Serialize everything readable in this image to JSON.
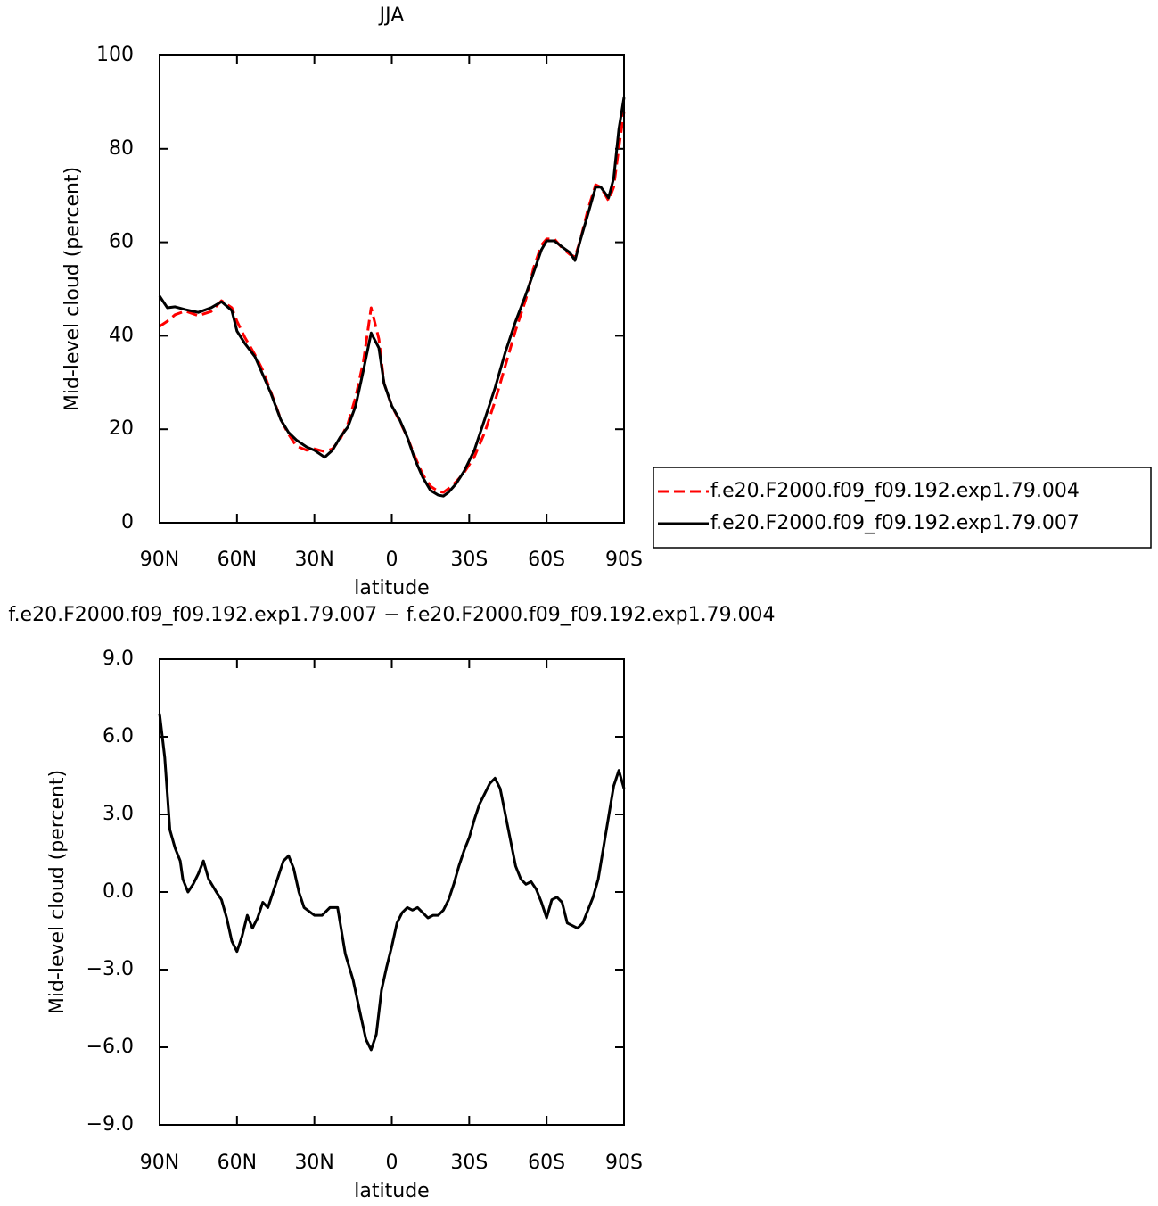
{
  "chart_data": [
    {
      "type": "line",
      "title": "JJA",
      "x_label": "latitude",
      "y_label": "Mid-level cloud (percent)",
      "xlim": [
        90,
        -90
      ],
      "ylim": [
        0,
        100
      ],
      "xticks": [
        {
          "value": 90,
          "label": "90N"
        },
        {
          "value": 60,
          "label": "60N"
        },
        {
          "value": 30,
          "label": "30N"
        },
        0,
        {
          "value": -30,
          "label": "30S"
        },
        {
          "value": -60,
          "label": "60S"
        },
        {
          "value": -90,
          "label": "90S"
        }
      ],
      "yticks": [
        0,
        20,
        40,
        60,
        80,
        100
      ],
      "legend": "right",
      "x": [
        90,
        87,
        84,
        80,
        75,
        70,
        66,
        62,
        60,
        57,
        53,
        50,
        47,
        43,
        40,
        37,
        33,
        30,
        26,
        23,
        20,
        17,
        14,
        11,
        8,
        5,
        3,
        0,
        -3,
        -6,
        -9,
        -12,
        -15,
        -18,
        -20,
        -22,
        -25,
        -28,
        -32,
        -36,
        -40,
        -44,
        -48,
        -52,
        -55,
        -58,
        -60,
        -63,
        -66,
        -69,
        -71,
        -73,
        -76,
        -79,
        -81,
        -84,
        -86,
        -88,
        -90
      ],
      "series": [
        {
          "name": "f.e20.F2000.f09_f09.192.exp1.79.004",
          "color": "#ff0000",
          "dash": "dashed",
          "values": [
            42,
            43.1,
            44.5,
            45.3,
            44.3,
            45.2,
            47.5,
            46,
            43.1,
            39.7,
            35.9,
            32.6,
            28.2,
            22.1,
            18.9,
            16.4,
            15.5,
            15.8,
            15.2,
            15.8,
            17.9,
            21.2,
            26.9,
            34.5,
            46,
            39.3,
            29.8,
            25,
            21.8,
            18.3,
            14.1,
            10.3,
            7.8,
            6.7,
            6.5,
            7.3,
            8.8,
            10.7,
            14.1,
            19.3,
            26,
            33.6,
            41.2,
            47.9,
            54.6,
            59.4,
            60.7,
            60.7,
            58.8,
            57.4,
            56.9,
            60.3,
            67,
            72.3,
            71.8,
            68.9,
            71.8,
            80.3,
            88
          ]
        },
        {
          "name": "f.e20.F2000.f09_f09.192.exp1.79.007",
          "color": "#000000",
          "dash": "solid",
          "values": [
            48.5,
            46,
            46.2,
            45.6,
            45,
            46,
            47.3,
            45.4,
            41,
            38.4,
            35.5,
            31.7,
            27.9,
            22,
            19.3,
            17.7,
            16.2,
            15.5,
            14,
            15.5,
            18.3,
            20.5,
            25,
            32.6,
            40.6,
            37.4,
            29.8,
            25,
            22.1,
            18.3,
            13.5,
            9.7,
            6.9,
            5.9,
            5.7,
            6.5,
            8.4,
            11,
            15.5,
            22.1,
            28.8,
            36.5,
            43.1,
            48.9,
            53.6,
            58.4,
            60.3,
            60.3,
            59,
            57.8,
            56.1,
            60.3,
            66,
            71.8,
            71.8,
            69.5,
            73.7,
            84.2,
            91
          ]
        }
      ]
    },
    {
      "type": "line",
      "title": "f.e20.F2000.f09_f09.192.exp1.79.007 − f.e20.F2000.f09_f09.192.exp1.79.004",
      "x_label": "latitude",
      "y_label": "Mid-level cloud (percent)",
      "xlim": [
        90,
        -90
      ],
      "ylim": [
        -9,
        9
      ],
      "xticks": [
        {
          "value": 90,
          "label": "90N"
        },
        {
          "value": 60,
          "label": "60N"
        },
        {
          "value": 30,
          "label": "30N"
        },
        0,
        {
          "value": -30,
          "label": "30S"
        },
        {
          "value": -60,
          "label": "60S"
        },
        {
          "value": -90,
          "label": "90S"
        }
      ],
      "yticks": [
        {
          "value": -9,
          "label": "−9.0"
        },
        {
          "value": -6,
          "label": "−6.0"
        },
        {
          "value": -3,
          "label": "−3.0"
        },
        {
          "value": 0,
          "label": "0.0"
        },
        {
          "value": 3,
          "label": "3.0"
        },
        {
          "value": 6,
          "label": "6.0"
        },
        {
          "value": 9,
          "label": "9.0"
        }
      ],
      "x": [
        90,
        88,
        86,
        84,
        82,
        81,
        79,
        77,
        75,
        73,
        71,
        68,
        66,
        64,
        62,
        60,
        58,
        56,
        54,
        52,
        50,
        48,
        46,
        44,
        42,
        40,
        38,
        36,
        34,
        30,
        27,
        24,
        21,
        18,
        15,
        12,
        10,
        8,
        6,
        4,
        2,
        0,
        -2,
        -4,
        -6,
        -8,
        -10,
        -12,
        -14,
        -16,
        -18,
        -20,
        -22,
        -24,
        -26,
        -28,
        -30,
        -32,
        -34,
        -36,
        -38,
        -40,
        -42,
        -44,
        -46,
        -48,
        -50,
        -52,
        -54,
        -56,
        -58,
        -60,
        -62,
        -64,
        -66,
        -68,
        -70,
        -72,
        -74,
        -76,
        -78,
        -80,
        -82,
        -84,
        -86,
        -88,
        -90
      ],
      "series": [
        {
          "color": "#000000",
          "dash": "solid",
          "values": [
            6.9,
            5.2,
            2.4,
            1.7,
            1.2,
            0.5,
            0.0,
            0.3,
            0.7,
            1.2,
            0.5,
            0.0,
            -0.3,
            -1.0,
            -1.9,
            -2.3,
            -1.7,
            -0.9,
            -1.4,
            -1.0,
            -0.4,
            -0.6,
            0.0,
            0.6,
            1.2,
            1.4,
            0.9,
            0.0,
            -0.6,
            -0.9,
            -0.9,
            -0.6,
            -0.6,
            -2.4,
            -3.4,
            -4.8,
            -5.7,
            -6.1,
            -5.5,
            -3.8,
            -2.9,
            -2.1,
            -1.2,
            -0.8,
            -0.6,
            -0.7,
            -0.6,
            -0.8,
            -1.0,
            -0.9,
            -0.9,
            -0.7,
            -0.3,
            0.3,
            1.0,
            1.6,
            2.1,
            2.8,
            3.4,
            3.8,
            4.2,
            4.4,
            4.0,
            3.0,
            2.0,
            1.0,
            0.5,
            0.3,
            0.4,
            0.1,
            -0.4,
            -1.0,
            -0.3,
            -0.2,
            -0.4,
            -1.2,
            -1.3,
            -1.4,
            -1.2,
            -0.7,
            -0.2,
            0.5,
            1.7,
            2.9,
            4.1,
            4.7,
            4.0
          ]
        }
      ]
    }
  ]
}
